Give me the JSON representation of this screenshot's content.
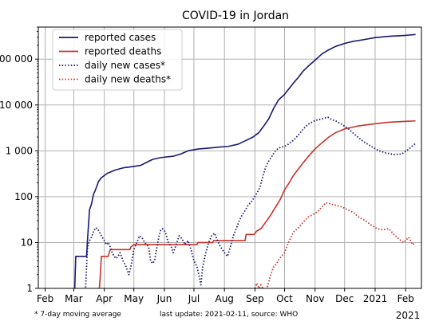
{
  "chart_data": {
    "type": "line",
    "title": "COVID-19 in Jordan",
    "xlabel": "",
    "ylabel": "",
    "y_scale": "log",
    "ylim": [
      1,
      500000
    ],
    "xlim": [
      "2020-01-25",
      "2021-02-17"
    ],
    "grid": true,
    "legend_position": "top-left",
    "x_ticks": [
      {
        "date": "2020-02-01",
        "label": "Feb"
      },
      {
        "date": "2020-03-01",
        "label": "Mar"
      },
      {
        "date": "2020-04-01",
        "label": "Apr"
      },
      {
        "date": "2020-05-01",
        "label": "May"
      },
      {
        "date": "2020-06-01",
        "label": "Jun"
      },
      {
        "date": "2020-07-01",
        "label": "Jul"
      },
      {
        "date": "2020-08-01",
        "label": "Aug"
      },
      {
        "date": "2020-09-01",
        "label": "Sep"
      },
      {
        "date": "2020-10-01",
        "label": "Oct"
      },
      {
        "date": "2020-11-01",
        "label": "Nov"
      },
      {
        "date": "2020-12-01",
        "label": "Dec"
      },
      {
        "date": "2021-01-01",
        "label": "2021"
      },
      {
        "date": "2021-02-01",
        "label": "Feb"
      }
    ],
    "y_ticks": [
      {
        "value": 1,
        "label": "1"
      },
      {
        "value": 10,
        "label": "10"
      },
      {
        "value": 100,
        "label": "100"
      },
      {
        "value": 1000,
        "label": "1 000"
      },
      {
        "value": 10000,
        "label": "10 000"
      },
      {
        "value": 100000,
        "label": "100 000"
      }
    ],
    "year_label": "2021",
    "series": [
      {
        "name": "reported cases",
        "color": "#191970",
        "style": "solid",
        "points": [
          [
            "2020-03-02",
            0.5
          ],
          [
            "2020-03-02",
            1
          ],
          [
            "2020-03-03",
            5
          ],
          [
            "2020-03-14",
            5
          ],
          [
            "2020-03-15",
            12
          ],
          [
            "2020-03-17",
            52
          ],
          [
            "2020-03-19",
            69
          ],
          [
            "2020-03-21",
            112
          ],
          [
            "2020-03-23",
            140
          ],
          [
            "2020-03-26",
            212
          ],
          [
            "2020-03-29",
            259
          ],
          [
            "2020-04-04",
            323
          ],
          [
            "2020-04-12",
            381
          ],
          [
            "2020-04-20",
            425
          ],
          [
            "2020-04-28",
            447
          ],
          [
            "2020-05-08",
            483
          ],
          [
            "2020-05-14",
            562
          ],
          [
            "2020-05-20",
            650
          ],
          [
            "2020-05-28",
            711
          ],
          [
            "2020-06-10",
            763
          ],
          [
            "2020-06-18",
            860
          ],
          [
            "2020-06-25",
            1000
          ],
          [
            "2020-07-05",
            1095
          ],
          [
            "2020-07-15",
            1140
          ],
          [
            "2020-07-25",
            1200
          ],
          [
            "2020-08-05",
            1250
          ],
          [
            "2020-08-15",
            1400
          ],
          [
            "2020-08-22",
            1650
          ],
          [
            "2020-08-30",
            2000
          ],
          [
            "2020-09-05",
            2500
          ],
          [
            "2020-09-10",
            3500
          ],
          [
            "2020-09-15",
            5000
          ],
          [
            "2020-09-20",
            8500
          ],
          [
            "2020-09-25",
            13000
          ],
          [
            "2020-10-01",
            17000
          ],
          [
            "2020-10-05",
            22000
          ],
          [
            "2020-10-10",
            30000
          ],
          [
            "2020-10-15",
            40000
          ],
          [
            "2020-10-20",
            55000
          ],
          [
            "2020-10-25",
            70000
          ],
          [
            "2020-11-01",
            95000
          ],
          [
            "2020-11-08",
            130000
          ],
          [
            "2020-11-15",
            160000
          ],
          [
            "2020-11-22",
            190000
          ],
          [
            "2020-12-01",
            220000
          ],
          [
            "2020-12-10",
            245000
          ],
          [
            "2020-12-20",
            265000
          ],
          [
            "2021-01-01",
            295000
          ],
          [
            "2021-01-15",
            315000
          ],
          [
            "2021-02-01",
            330000
          ],
          [
            "2021-02-11",
            345000
          ]
        ]
      },
      {
        "name": "reported deaths",
        "color": "#c83228",
        "style": "solid",
        "points": [
          [
            "2020-03-26",
            0.5
          ],
          [
            "2020-03-26",
            1
          ],
          [
            "2020-03-27",
            1
          ],
          [
            "2020-03-28",
            2
          ],
          [
            "2020-03-29",
            5
          ],
          [
            "2020-04-05",
            5
          ],
          [
            "2020-04-06",
            6
          ],
          [
            "2020-04-07",
            7
          ],
          [
            "2020-04-27",
            7
          ],
          [
            "2020-04-28",
            8
          ],
          [
            "2020-05-01",
            9
          ],
          [
            "2020-07-04",
            9
          ],
          [
            "2020-07-05",
            10
          ],
          [
            "2020-07-20",
            10
          ],
          [
            "2020-07-21",
            11
          ],
          [
            "2020-08-22",
            11
          ],
          [
            "2020-08-23",
            15
          ],
          [
            "2020-08-31",
            15
          ],
          [
            "2020-09-03",
            18
          ],
          [
            "2020-09-07",
            20
          ],
          [
            "2020-09-12",
            28
          ],
          [
            "2020-09-17",
            40
          ],
          [
            "2020-09-22",
            60
          ],
          [
            "2020-09-27",
            90
          ],
          [
            "2020-10-01",
            140
          ],
          [
            "2020-10-05",
            190
          ],
          [
            "2020-10-10",
            290
          ],
          [
            "2020-10-15",
            400
          ],
          [
            "2020-10-20",
            550
          ],
          [
            "2020-10-25",
            750
          ],
          [
            "2020-11-01",
            1100
          ],
          [
            "2020-11-08",
            1500
          ],
          [
            "2020-11-15",
            2000
          ],
          [
            "2020-11-22",
            2500
          ],
          [
            "2020-12-01",
            3000
          ],
          [
            "2020-12-15",
            3500
          ],
          [
            "2021-01-01",
            3900
          ],
          [
            "2021-01-15",
            4200
          ],
          [
            "2021-02-01",
            4400
          ],
          [
            "2021-02-11",
            4500
          ]
        ]
      },
      {
        "name": "daily new cases*",
        "color": "#191970",
        "style": "dotted",
        "points": [
          [
            "2020-03-12",
            0.5
          ],
          [
            "2020-03-13",
            1
          ],
          [
            "2020-03-14",
            3
          ],
          [
            "2020-03-15",
            8
          ],
          [
            "2020-03-17",
            11
          ],
          [
            "2020-03-19",
            13
          ],
          [
            "2020-03-21",
            17
          ],
          [
            "2020-03-23",
            21
          ],
          [
            "2020-03-25",
            20
          ],
          [
            "2020-03-27",
            17
          ],
          [
            "2020-03-29",
            14
          ],
          [
            "2020-04-01",
            11
          ],
          [
            "2020-04-03",
            9
          ],
          [
            "2020-04-05",
            10
          ],
          [
            "2020-04-07",
            8
          ],
          [
            "2020-04-09",
            6
          ],
          [
            "2020-04-11",
            5
          ],
          [
            "2020-04-13",
            4.5
          ],
          [
            "2020-04-15",
            5
          ],
          [
            "2020-04-17",
            6
          ],
          [
            "2020-04-20",
            4
          ],
          [
            "2020-04-23",
            3
          ],
          [
            "2020-04-26",
            2
          ],
          [
            "2020-04-28",
            3
          ],
          [
            "2020-05-01",
            7
          ],
          [
            "2020-05-04",
            10
          ],
          [
            "2020-05-07",
            14
          ],
          [
            "2020-05-10",
            12
          ],
          [
            "2020-05-12",
            10
          ],
          [
            "2020-05-14",
            9
          ],
          [
            "2020-05-16",
            8
          ],
          [
            "2020-05-18",
            4
          ],
          [
            "2020-05-20",
            3.5
          ],
          [
            "2020-05-22",
            4
          ],
          [
            "2020-05-24",
            7
          ],
          [
            "2020-05-26",
            12
          ],
          [
            "2020-05-28",
            18
          ],
          [
            "2020-05-30",
            20
          ],
          [
            "2020-06-02",
            17
          ],
          [
            "2020-06-05",
            10
          ],
          [
            "2020-06-08",
            8
          ],
          [
            "2020-06-10",
            6
          ],
          [
            "2020-06-13",
            9
          ],
          [
            "2020-06-16",
            14
          ],
          [
            "2020-06-19",
            12
          ],
          [
            "2020-06-22",
            9
          ],
          [
            "2020-06-25",
            11
          ],
          [
            "2020-06-28",
            7
          ],
          [
            "2020-07-01",
            4
          ],
          [
            "2020-07-04",
            3
          ],
          [
            "2020-07-06",
            2
          ],
          [
            "2020-07-08",
            1.2
          ],
          [
            "2020-07-10",
            3
          ],
          [
            "2020-07-13",
            6
          ],
          [
            "2020-07-16",
            10
          ],
          [
            "2020-07-19",
            14
          ],
          [
            "2020-07-22",
            16
          ],
          [
            "2020-07-25",
            11
          ],
          [
            "2020-07-28",
            8
          ],
          [
            "2020-08-01",
            6
          ],
          [
            "2020-08-04",
            5
          ],
          [
            "2020-08-07",
            8
          ],
          [
            "2020-08-10",
            14
          ],
          [
            "2020-08-13",
            20
          ],
          [
            "2020-08-16",
            30
          ],
          [
            "2020-08-19",
            40
          ],
          [
            "2020-08-22",
            50
          ],
          [
            "2020-08-25",
            65
          ],
          [
            "2020-08-28",
            75
          ],
          [
            "2020-08-31",
            95
          ],
          [
            "2020-09-03",
            120
          ],
          [
            "2020-09-06",
            160
          ],
          [
            "2020-09-09",
            280
          ],
          [
            "2020-09-12",
            450
          ],
          [
            "2020-09-15",
            600
          ],
          [
            "2020-09-18",
            750
          ],
          [
            "2020-09-21",
            950
          ],
          [
            "2020-09-24",
            1100
          ],
          [
            "2020-09-27",
            1200
          ],
          [
            "2020-10-01",
            1250
          ],
          [
            "2020-10-05",
            1400
          ],
          [
            "2020-10-10",
            1700
          ],
          [
            "2020-10-15",
            2200
          ],
          [
            "2020-10-20",
            3000
          ],
          [
            "2020-10-25",
            3800
          ],
          [
            "2020-11-01",
            4600
          ],
          [
            "2020-11-08",
            5000
          ],
          [
            "2020-11-14",
            5400
          ],
          [
            "2020-11-18",
            4800
          ],
          [
            "2020-11-22",
            4500
          ],
          [
            "2020-11-28",
            3800
          ],
          [
            "2020-12-05",
            3000
          ],
          [
            "2020-12-12",
            2200
          ],
          [
            "2020-12-20",
            1600
          ],
          [
            "2020-12-28",
            1250
          ],
          [
            "2021-01-05",
            1000
          ],
          [
            "2021-01-12",
            900
          ],
          [
            "2021-01-20",
            830
          ],
          [
            "2021-01-28",
            850
          ],
          [
            "2021-02-03",
            1050
          ],
          [
            "2021-02-11",
            1450
          ]
        ]
      },
      {
        "name": "daily new deaths*",
        "color": "#c83228",
        "style": "dotted",
        "points": [
          [
            "2020-09-01",
            1.0
          ],
          [
            "2020-09-03",
            1.3
          ],
          [
            "2020-09-05",
            1.0
          ],
          [
            "2020-09-07",
            1.2
          ],
          [
            "2020-09-09",
            1.0
          ],
          [
            "2020-09-11",
            0.9
          ],
          [
            "2020-09-13",
            1.0
          ],
          [
            "2020-09-15",
            1.4
          ],
          [
            "2020-09-17",
            2.0
          ],
          [
            "2020-09-20",
            3.0
          ],
          [
            "2020-09-23",
            3.5
          ],
          [
            "2020-09-26",
            4.5
          ],
          [
            "2020-10-01",
            6
          ],
          [
            "2020-10-05",
            10
          ],
          [
            "2020-10-10",
            17
          ],
          [
            "2020-10-15",
            21
          ],
          [
            "2020-10-20",
            28
          ],
          [
            "2020-10-25",
            36
          ],
          [
            "2020-10-30",
            41
          ],
          [
            "2020-11-04",
            48
          ],
          [
            "2020-11-08",
            60
          ],
          [
            "2020-11-12",
            74
          ],
          [
            "2020-11-16",
            70
          ],
          [
            "2020-11-22",
            65
          ],
          [
            "2020-11-28",
            60
          ],
          [
            "2020-12-04",
            52
          ],
          [
            "2020-12-10",
            45
          ],
          [
            "2020-12-16",
            35
          ],
          [
            "2020-12-22",
            30
          ],
          [
            "2020-12-28",
            24
          ],
          [
            "2021-01-03",
            20
          ],
          [
            "2021-01-09",
            19
          ],
          [
            "2021-01-15",
            20
          ],
          [
            "2021-01-20",
            15
          ],
          [
            "2021-01-25",
            12
          ],
          [
            "2021-01-30",
            10
          ],
          [
            "2021-02-04",
            13
          ],
          [
            "2021-02-08",
            9
          ],
          [
            "2021-02-11",
            10
          ]
        ]
      }
    ],
    "footnote_left": "* 7-day moving average",
    "footnote_right": "last update: 2021-02-11, source: WHO"
  }
}
